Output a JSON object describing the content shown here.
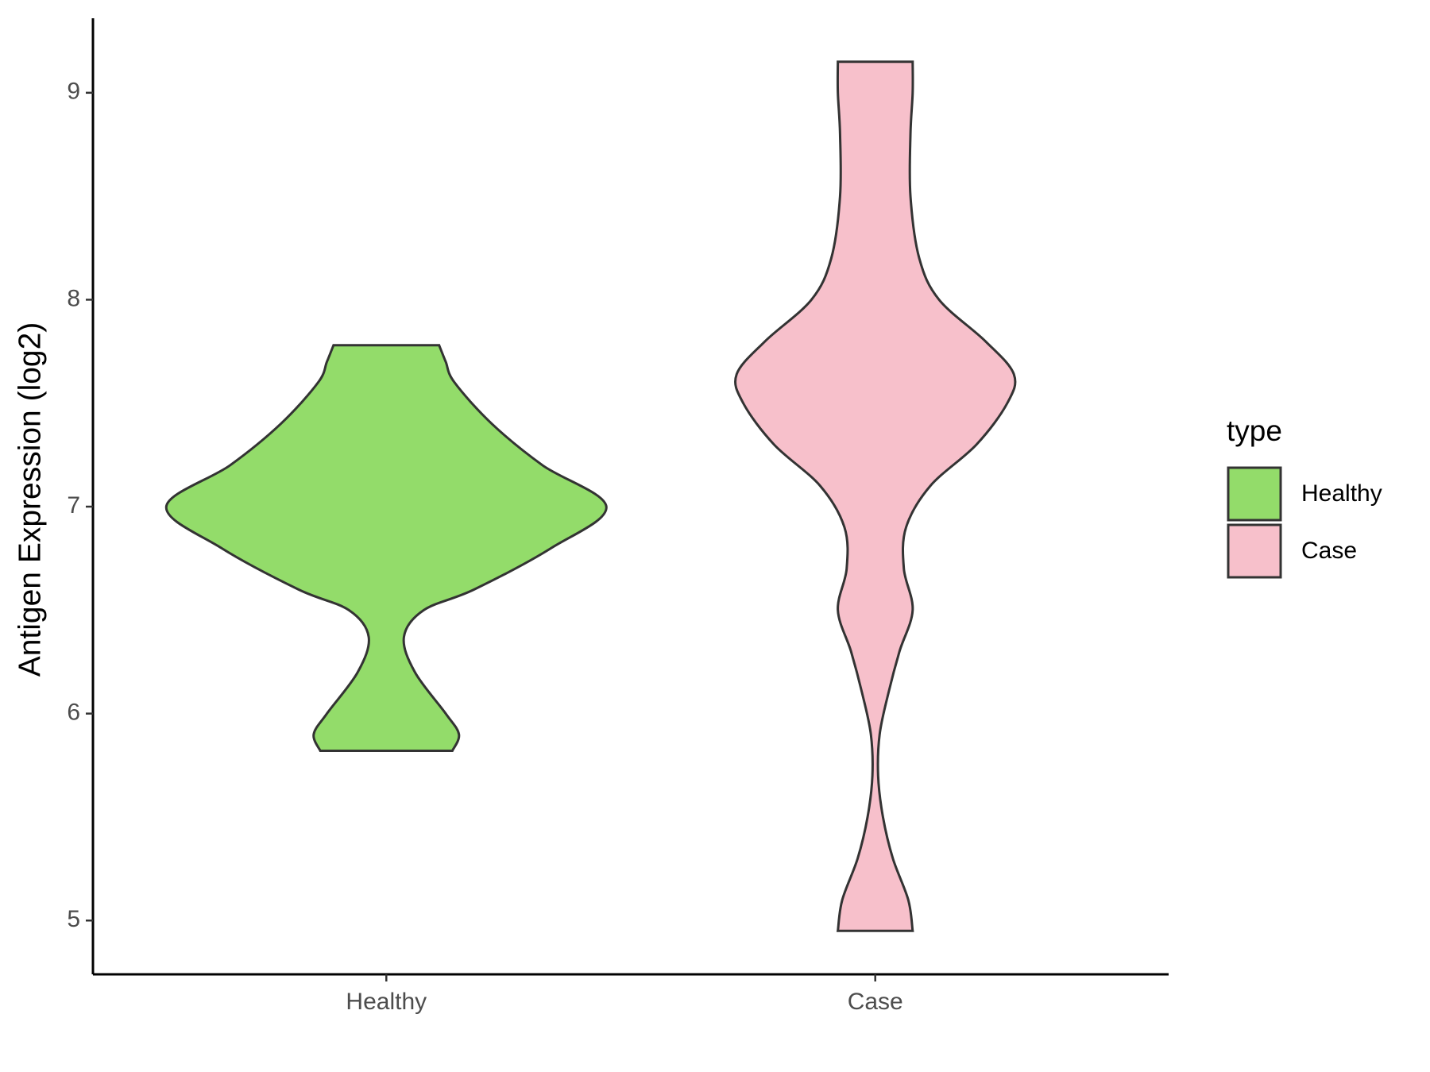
{
  "chart_data": {
    "type": "violin",
    "y_label": "Antigen Expression (log2)",
    "categories": [
      "Healthy",
      "Case"
    ],
    "ylim": [
      4.74,
      9.36
    ],
    "yticks": [
      5,
      6,
      7,
      8,
      9
    ],
    "legend_title": "type",
    "legend_position": "right",
    "series": [
      {
        "name": "Healthy",
        "color": "#93dc6a",
        "y": [
          5.82,
          5.9,
          6.0,
          6.2,
          6.37,
          6.5,
          6.6,
          6.8,
          7.0,
          7.2,
          7.4,
          7.6,
          7.7,
          7.78
        ],
        "density": [
          0.3,
          0.33,
          0.27,
          0.13,
          0.08,
          0.17,
          0.4,
          0.75,
          1.0,
          0.71,
          0.48,
          0.31,
          0.27,
          0.24
        ]
      },
      {
        "name": "Case",
        "color": "#f7c0cb",
        "y": [
          4.95,
          5.1,
          5.3,
          5.5,
          5.7,
          5.9,
          6.1,
          6.3,
          6.5,
          6.7,
          6.9,
          7.1,
          7.3,
          7.5,
          7.64,
          7.8,
          8.0,
          8.2,
          8.5,
          8.8,
          9.0,
          9.15
        ],
        "density": [
          0.17,
          0.15,
          0.08,
          0.035,
          0.013,
          0.02,
          0.06,
          0.11,
          0.17,
          0.13,
          0.14,
          0.25,
          0.46,
          0.6,
          0.63,
          0.5,
          0.29,
          0.2,
          0.16,
          0.16,
          0.17,
          0.17
        ]
      }
    ]
  }
}
